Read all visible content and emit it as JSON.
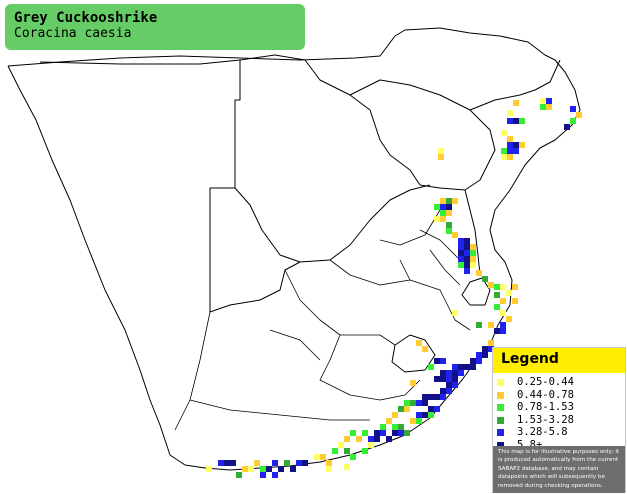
{
  "title": {
    "common_name": "Grey Cuckooshrike",
    "scientific_name": "Coracina caesia"
  },
  "legend": {
    "heading": "Legend",
    "classes": [
      {
        "label": "0.25-0.44",
        "color": "#ffff66"
      },
      {
        "label": "0.44-0.78",
        "color": "#ffcc33"
      },
      {
        "label": "0.78-1.53",
        "color": "#33ee33"
      },
      {
        "label": "1.53-3.28",
        "color": "#33aa33"
      },
      {
        "label": "3.28-5.8",
        "color": "#2222ee"
      },
      {
        "label": "5.8+",
        "color": "#111188"
      }
    ],
    "note": "This map is for illustrative purposes only; it is produced automatically from the current SABAP2 database, and may contain datapoints which will subsequently be removed during checking operations."
  },
  "colors": {
    "map_background": "#ffffff",
    "border_line": "#000000",
    "title_background": "#66cc66",
    "legend_header": "#ffee00",
    "note_background": "#6e6e6e"
  }
}
